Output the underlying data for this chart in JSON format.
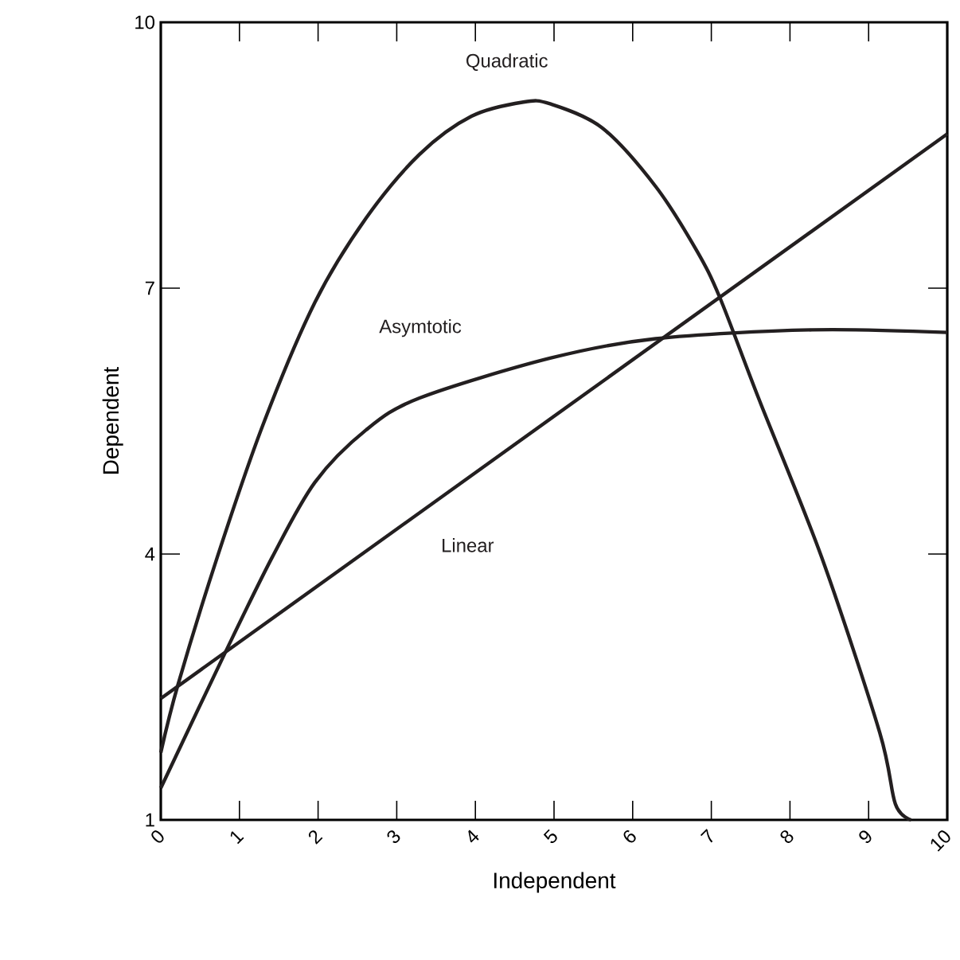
{
  "chart_data": {
    "type": "line",
    "xlabel": "Independent",
    "ylabel": "Dependent",
    "xlim": [
      0,
      10
    ],
    "ylim": [
      1,
      10
    ],
    "xticks": [
      0,
      1,
      2,
      3,
      4,
      5,
      6,
      7,
      8,
      9,
      10
    ],
    "yticks": [
      1,
      4,
      7,
      10
    ],
    "grid": false,
    "legend": false,
    "marker": "none",
    "line_style": "solid",
    "series": [
      {
        "name": "Quadratic",
        "color": "#231f20",
        "x": [
          0,
          0.22,
          0.72,
          1.3,
          1.96,
          2.61,
          3.29,
          3.95,
          4.61,
          4.95,
          5.61,
          6.29,
          6.81,
          7.11,
          7.6,
          8.4,
          9.14,
          9.34,
          9.54
        ],
        "values": [
          1.76,
          2.53,
          3.97,
          5.46,
          6.84,
          7.79,
          8.51,
          8.94,
          9.1,
          9.08,
          8.81,
          8.15,
          7.43,
          6.89,
          5.76,
          3.97,
          1.99,
          1.18,
          1.0
        ]
      },
      {
        "name": "Asymtotic",
        "color": "#231f20",
        "x": [
          0,
          0.82,
          1.42,
          1.96,
          2.61,
          3.29,
          4.95,
          6.29,
          8.28,
          10
        ],
        "values": [
          1.36,
          2.89,
          3.97,
          4.81,
          5.4,
          5.76,
          6.21,
          6.43,
          6.53,
          6.5
        ]
      },
      {
        "name": "Linear",
        "color": "#231f20",
        "x": [
          0,
          10
        ],
        "values": [
          2.37,
          8.74
        ]
      }
    ]
  }
}
